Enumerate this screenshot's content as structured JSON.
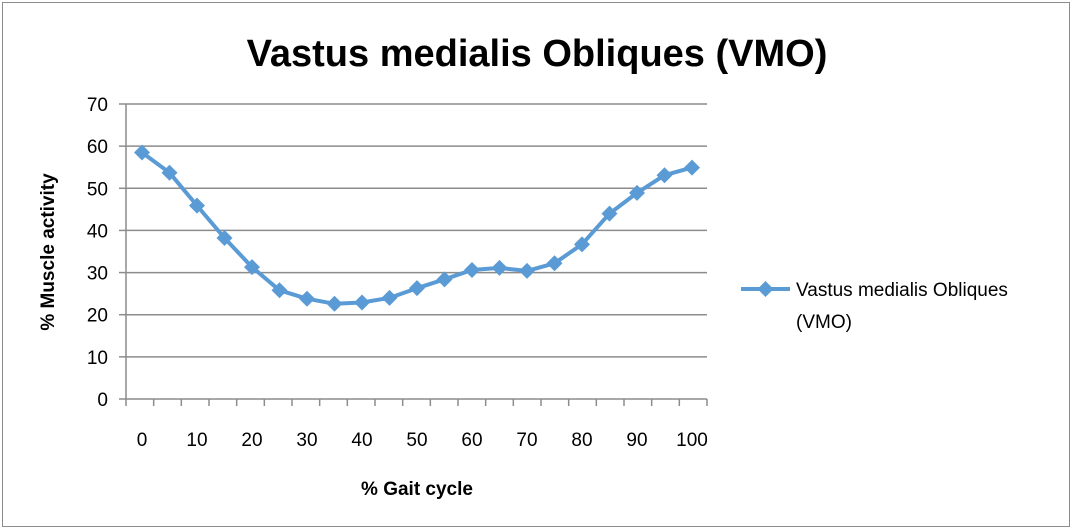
{
  "chart_data": {
    "type": "line",
    "title": "Vastus medialis Obliques (VMO)",
    "xlabel": "% Gait cycle",
    "ylabel": "% Muscle activity",
    "xlim": [
      0,
      100
    ],
    "ylim": [
      0,
      70
    ],
    "xticks": [
      "0",
      "10",
      "20",
      "30",
      "40",
      "50",
      "60",
      "70",
      "80",
      "90",
      "100"
    ],
    "yticks": [
      "0",
      "10",
      "20",
      "30",
      "40",
      "50",
      "60",
      "70"
    ],
    "grid": "horizontal",
    "legend_position": "right",
    "colors": {
      "series": "#5b9bd5",
      "grid": "#8c8c8c",
      "axis": "#8c8c8c"
    },
    "series": [
      {
        "name": "Vastus medialis Obliques (VMO)",
        "x": [
          0,
          5,
          10,
          15,
          20,
          25,
          30,
          35,
          40,
          45,
          50,
          55,
          60,
          65,
          70,
          75,
          80,
          85,
          90,
          95,
          100
        ],
        "values": [
          58.5,
          53.7,
          45.9,
          38.2,
          31.3,
          25.8,
          23.8,
          22.6,
          22.9,
          24.0,
          26.3,
          28.4,
          30.6,
          31.1,
          30.4,
          32.2,
          36.7,
          44.0,
          48.9,
          53.1,
          54.9
        ]
      }
    ]
  }
}
